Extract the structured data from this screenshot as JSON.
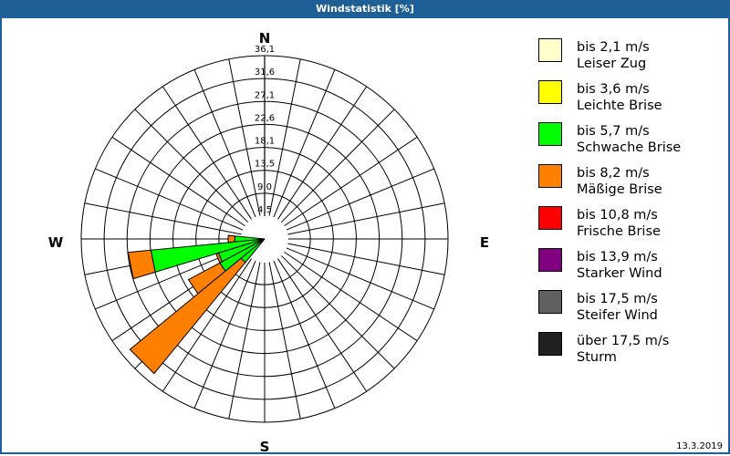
{
  "title": "Windstatistik [%]",
  "date": "13.3.2019",
  "compass": {
    "N": "N",
    "E": "E",
    "S": "S",
    "W": "W"
  },
  "legend": [
    {
      "range": "bis 2,1 m/s",
      "name": "Leiser Zug",
      "color": "#ffffcc"
    },
    {
      "range": "bis 3,6 m/s",
      "name": "Leichte Brise",
      "color": "#ffff00"
    },
    {
      "range": "bis 5,7 m/s",
      "name": "Schwache Brise",
      "color": "#00ff00"
    },
    {
      "range": "bis 8,2 m/s",
      "name": "Mäßige Brise",
      "color": "#ff8000"
    },
    {
      "range": "bis 10,8 m/s",
      "name": "Frische Brise",
      "color": "#ff0000"
    },
    {
      "range": "bis 13,9 m/s",
      "name": "Starker Wind",
      "color": "#800080"
    },
    {
      "range": "bis 17,5 m/s",
      "name": "Steifer Wind",
      "color": "#606060"
    },
    {
      "range": "über 17,5 m/s",
      "name": "Sturm",
      "color": "#202020"
    }
  ],
  "chart_data": {
    "type": "wind-rose",
    "title": "Windstatistik [%]",
    "rings": [
      "4,5",
      "9,0",
      "13,5",
      "18,1",
      "22,6",
      "27,1",
      "31,6",
      "36,1"
    ],
    "rmax": 36.1,
    "sectors": 32,
    "petals": [
      {
        "dir": 270.0,
        "segments": [
          {
            "class": "Sturm",
            "upto": 0.8
          },
          {
            "class": "Schwache Brise",
            "upto": 5.9
          },
          {
            "class": "Mäßige Brise",
            "upto": 7.2
          }
        ]
      },
      {
        "dir": 258.75,
        "segments": [
          {
            "class": "Schwache Brise",
            "upto": 22.5
          },
          {
            "class": "Mäßige Brise",
            "upto": 27.0
          }
        ]
      },
      {
        "dir": 247.5,
        "segments": [
          {
            "class": "Schwache Brise",
            "upto": 9.5
          },
          {
            "class": "Mäßige Brise",
            "upto": 10.0
          }
        ]
      },
      {
        "dir": 236.25,
        "segments": [
          {
            "class": "Schwache Brise",
            "upto": 10.0
          },
          {
            "class": "Mäßige Brise",
            "upto": 17.0
          }
        ]
      },
      {
        "dir": 225.0,
        "segments": [
          {
            "class": "Schwache Brise",
            "upto": 6.0
          },
          {
            "class": "Mäßige Brise",
            "upto": 34.3
          }
        ]
      }
    ]
  }
}
